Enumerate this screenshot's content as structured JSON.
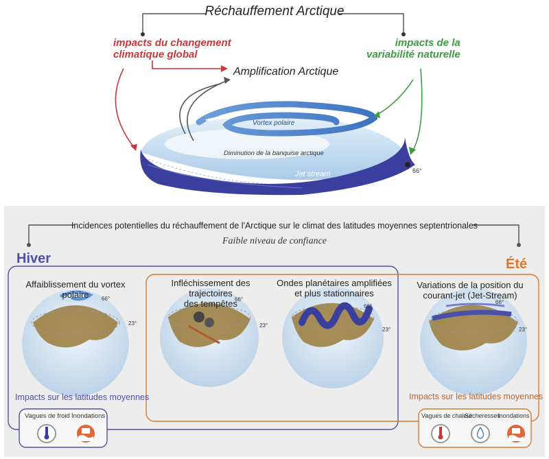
{
  "top": {
    "title": "Réchauffement Arctique",
    "global_impacts_line1": "impacts du changement",
    "global_impacts_line2": "climatique global",
    "natural_variability_line1": "impacts de la",
    "natural_variability_line2": "variabilité naturelle",
    "amplification": "Amplification Arctique",
    "polar_vortex": "Vortex polaire",
    "sea_ice": "Diminution de la banquise arctique",
    "jet_stream": "Jet stream",
    "latitude_66": "66°"
  },
  "bottom": {
    "headline": "Incidences potentielles du réchauffement de l'Arctique sur le climat des latitudes moyennes septentrionales",
    "confidence": "Faible niveau de confiance",
    "winter_label": "Hiver",
    "summer_label": "Été",
    "globes": [
      {
        "title_line1": "Affaiblissement du vortex polaire",
        "title_line2": "",
        "lat_high": "66°",
        "lat_low": "23°"
      },
      {
        "title_line1": "Infléchissement des trajectoires",
        "title_line2": "des tempêtes",
        "lat_high": "66°",
        "lat_low": "23°"
      },
      {
        "title_line1": "Ondes planétaires amplifiées",
        "title_line2": "et plus stationnaires",
        "lat_high": "66°",
        "lat_low": "23°"
      },
      {
        "title_line1": "Variations de la position  du",
        "title_line2": "courant-jet (Jet-Stream)",
        "lat_high": "66°",
        "lat_low": "23°"
      }
    ],
    "winter_impacts_title": "Impacts sur les latitudes moyennes",
    "summer_impacts_title": "Impacts sur les latitudes moyennes",
    "winter_impacts": [
      "Vagues de froid",
      "Inondations"
    ],
    "summer_impacts": [
      "Vagues de chaleur",
      "Sécheresses",
      "Inondations"
    ]
  },
  "colors": {
    "red": "#c8373a",
    "green": "#3f9a45",
    "jet_blue": "#3a3f9e",
    "winter_blue": "#4f4fa6",
    "summer_orange": "#d9772d"
  }
}
